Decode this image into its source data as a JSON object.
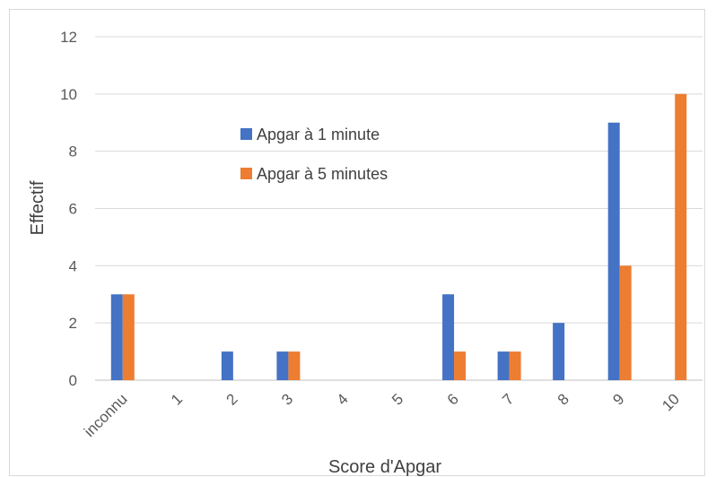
{
  "chart_data": {
    "type": "bar",
    "categories": [
      "inconnu",
      "1",
      "2",
      "3",
      "4",
      "5",
      "6",
      "7",
      "8",
      "9",
      "10"
    ],
    "series": [
      {
        "name": "Apgar à 1 minute",
        "values": [
          3,
          0,
          1,
          1,
          0,
          0,
          3,
          1,
          2,
          9,
          0
        ],
        "color": "#4472c4"
      },
      {
        "name": "Apgar à 5 minutes",
        "values": [
          3,
          0,
          0,
          1,
          0,
          0,
          1,
          1,
          0,
          4,
          10
        ],
        "color": "#ed7d31"
      }
    ],
    "title": "",
    "xlabel": "Score d'Apgar",
    "ylabel": "Effectif",
    "ylim": [
      0,
      12
    ],
    "yticks": [
      0,
      2,
      4,
      6,
      8,
      10,
      12
    ],
    "grid": true,
    "legend_position": "inside upper-center"
  }
}
